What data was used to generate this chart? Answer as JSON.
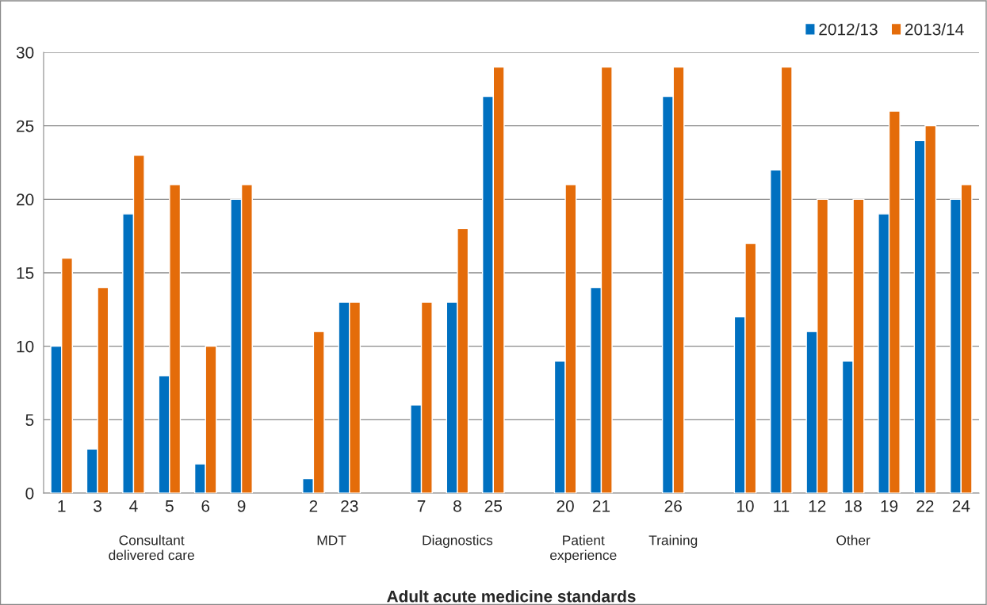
{
  "chart_data": {
    "type": "bar",
    "xlabel": "Adult acute medicine standards",
    "categories": [
      "1",
      "3",
      "4",
      "5",
      "6",
      "9",
      null,
      "2",
      "23",
      null,
      "7",
      "8",
      "25",
      null,
      "20",
      "21",
      null,
      "26",
      null,
      "10",
      "11",
      "12",
      "18",
      "19",
      "22",
      "24"
    ],
    "series": [
      {
        "name": "2012/13",
        "color": "#0070c0",
        "values": [
          10,
          3,
          19,
          8,
          2,
          20,
          null,
          1,
          13,
          null,
          6,
          13,
          27,
          null,
          9,
          14,
          null,
          27,
          null,
          12,
          22,
          11,
          9,
          19,
          24,
          20
        ]
      },
      {
        "name": "2013/14",
        "color": "#e46c0a",
        "values": [
          16,
          14,
          23,
          21,
          10,
          21,
          null,
          11,
          13,
          null,
          13,
          18,
          29,
          null,
          21,
          29,
          null,
          29,
          null,
          17,
          29,
          20,
          20,
          26,
          25,
          21
        ]
      }
    ],
    "annotations": [
      "Consultant\ndelivered care",
      "MDT",
      "Diagnostics",
      "Patient\nexperience",
      "Training",
      "Other"
    ],
    "ylim": [
      0,
      30
    ],
    "yticks": [
      0,
      5,
      10,
      15,
      20,
      25,
      30
    ],
    "grid": "y",
    "legend": "top right"
  }
}
